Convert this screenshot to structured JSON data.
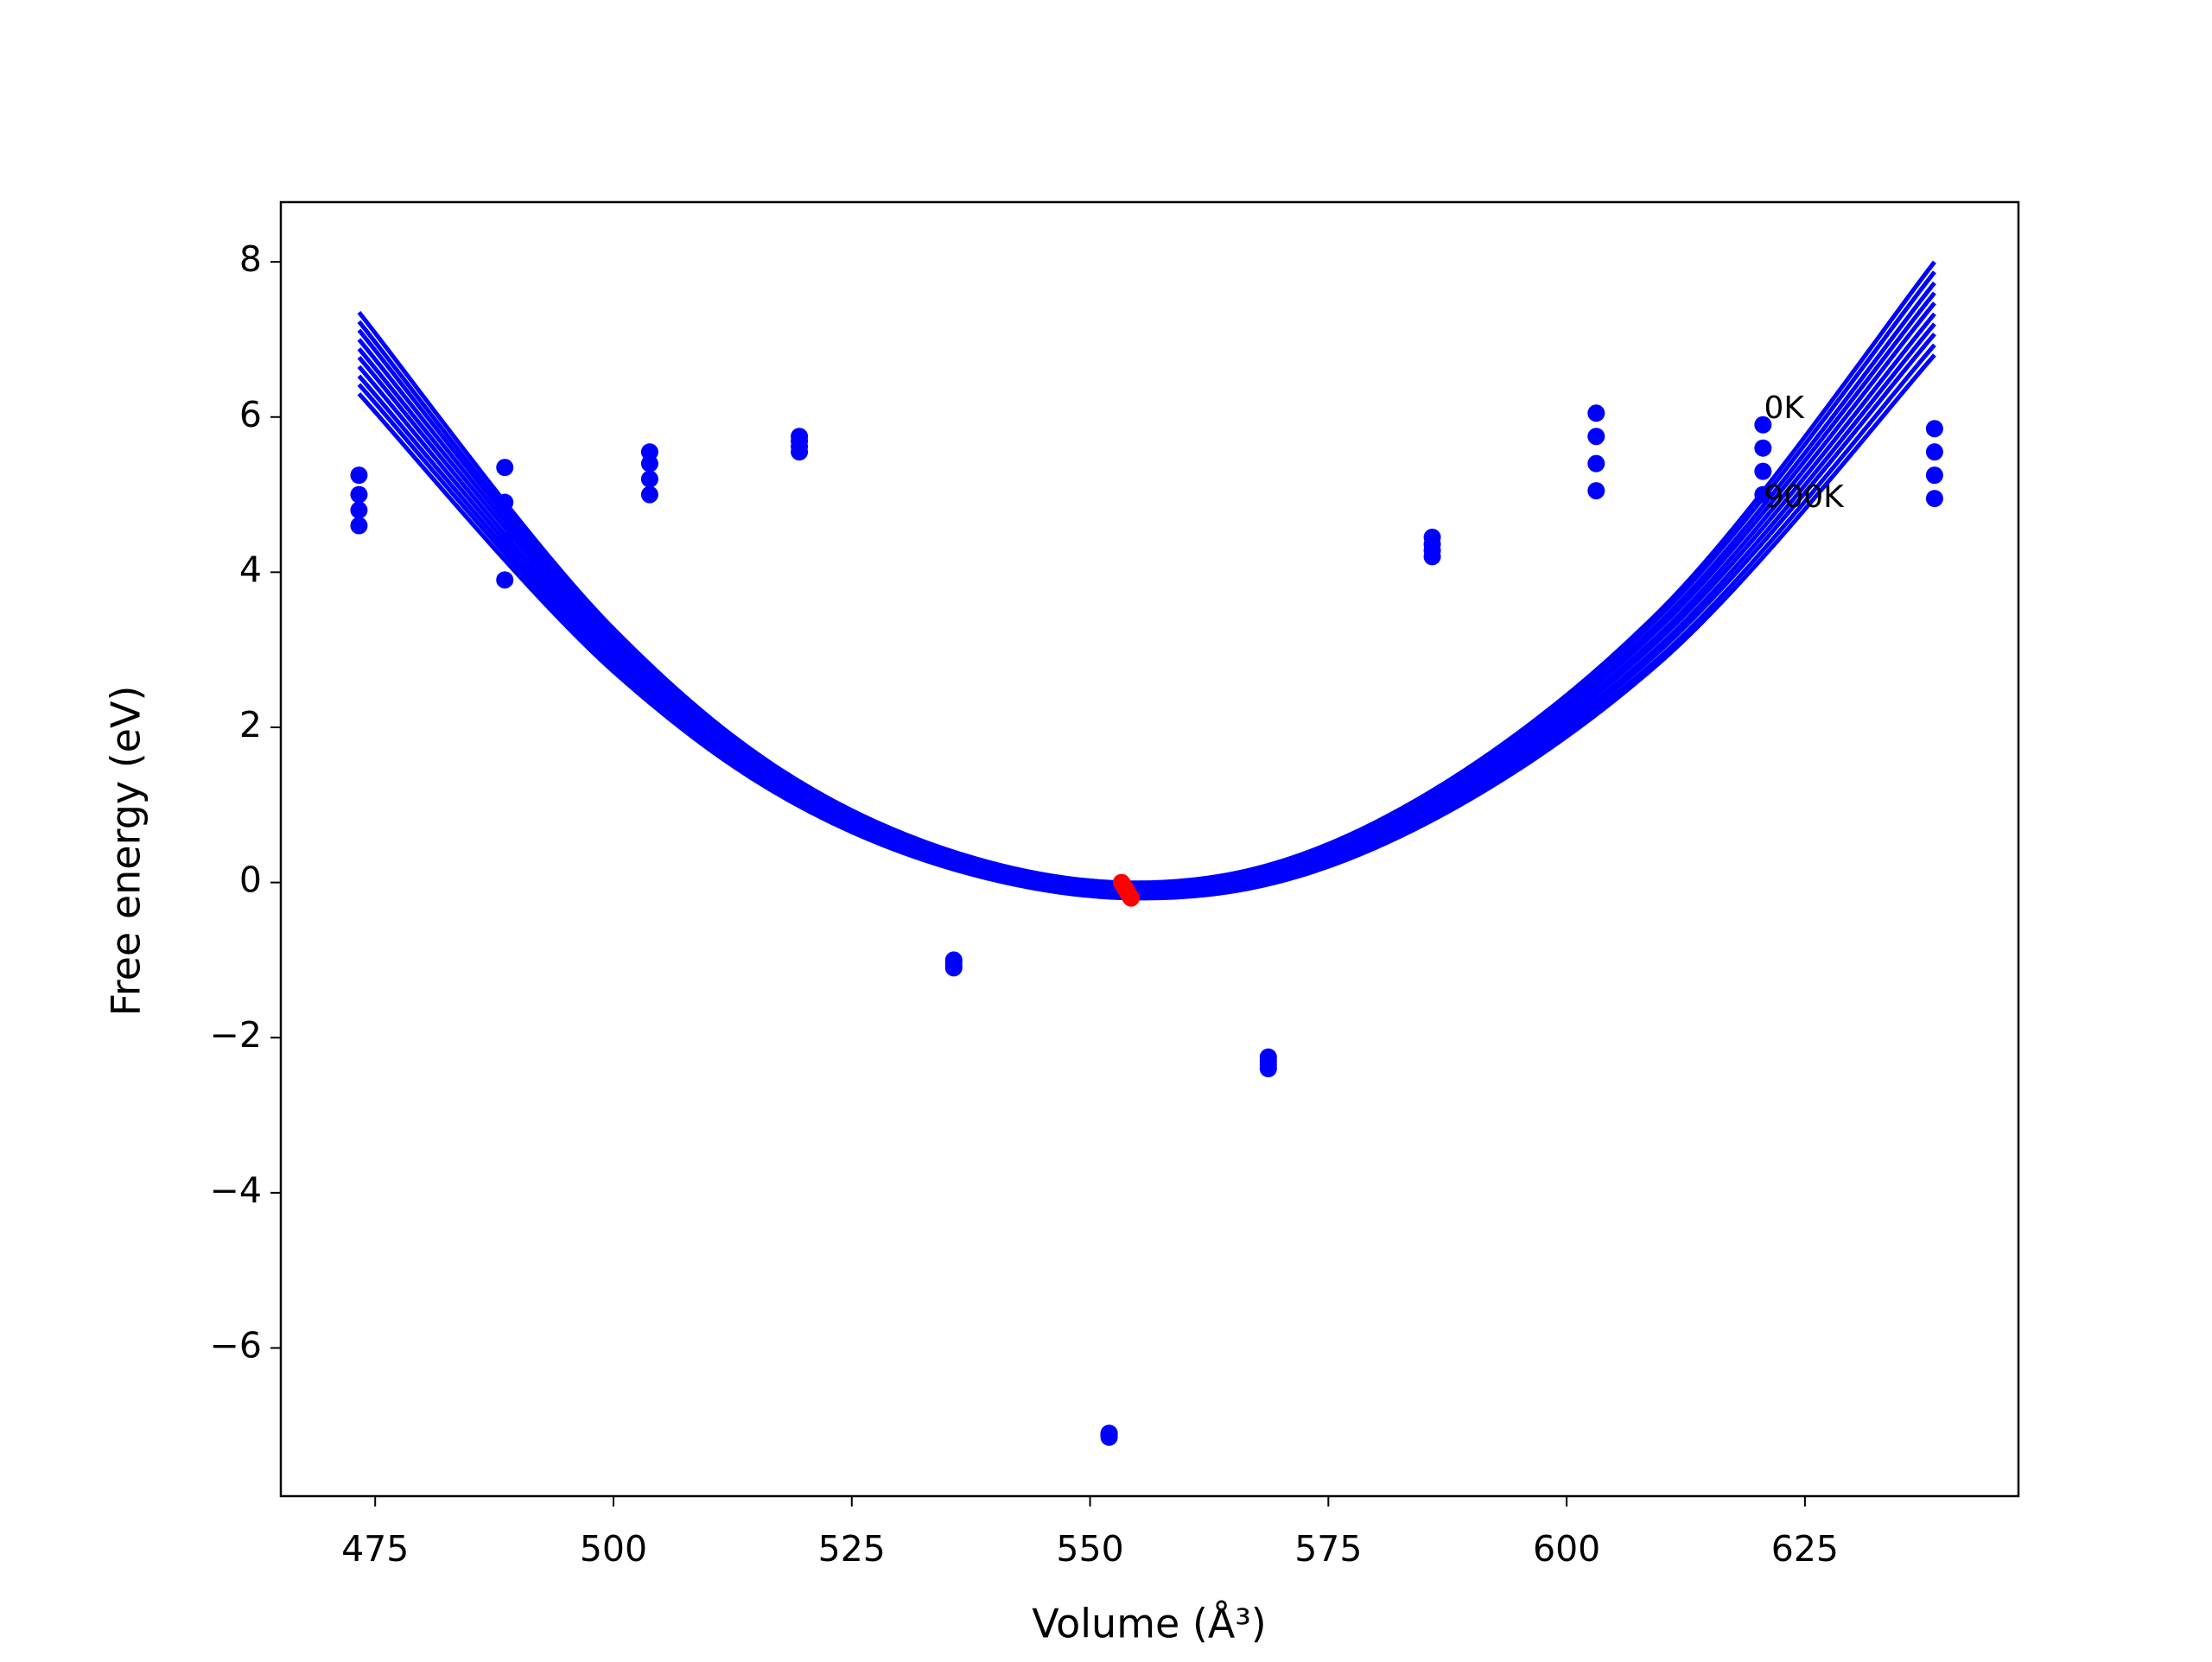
{
  "chart_data": {
    "type": "line",
    "xlabel": "Volume (Å³)",
    "ylabel": "Free energy (eV)",
    "xlim": [
      465.1,
      647.4
    ],
    "ylim": [
      -7.91,
      8.77
    ],
    "xticks": [
      475,
      500,
      525,
      550,
      575,
      600,
      625
    ],
    "yticks": [
      {
        "value": -6,
        "label": "−6"
      },
      {
        "value": -4,
        "label": "−4"
      },
      {
        "value": -2,
        "label": "−2"
      },
      0,
      2,
      4,
      6,
      8
    ],
    "x": [
      473.3,
      500,
      525,
      553.5,
      580,
      610,
      638.6
    ],
    "series": [
      {
        "color": "#0000ff",
        "values": [
          7.35,
          3.27,
          0.93,
          0,
          0.78,
          3.53,
          8.0
        ]
      },
      {
        "color": "#0000ff",
        "values": [
          7.23,
          3.21,
          0.9,
          -0.02,
          0.74,
          3.46,
          7.87
        ]
      },
      {
        "color": "#0000ff",
        "values": [
          7.12,
          3.15,
          0.87,
          -0.04,
          0.71,
          3.38,
          7.73
        ]
      },
      {
        "color": "#0000ff",
        "values": [
          7.0,
          3.09,
          0.84,
          -0.07,
          0.67,
          3.31,
          7.6
        ]
      },
      {
        "color": "#0000ff",
        "values": [
          6.88,
          3.03,
          0.81,
          -0.09,
          0.63,
          3.23,
          7.47
        ]
      },
      {
        "color": "#0000ff",
        "values": [
          6.77,
          2.96,
          0.77,
          -0.11,
          0.6,
          3.16,
          7.33
        ]
      },
      {
        "color": "#0000ff",
        "values": [
          6.65,
          2.9,
          0.74,
          -0.13,
          0.56,
          3.08,
          7.2
        ]
      },
      {
        "color": "#0000ff",
        "values": [
          6.53,
          2.84,
          0.71,
          -0.16,
          0.52,
          3.01,
          7.07
        ]
      },
      {
        "color": "#0000ff",
        "values": [
          6.42,
          2.78,
          0.68,
          -0.18,
          0.49,
          2.93,
          6.93
        ]
      },
      {
        "color": "#0000ff",
        "values": [
          6.3,
          2.72,
          0.65,
          -0.2,
          0.45,
          2.86,
          6.8
        ]
      },
      {
        "type": "scatter",
        "color": "#0000ff",
        "x": [
          473.3,
          473.3,
          473.3,
          473.3,
          488.6,
          488.6,
          488.6,
          488.6,
          503.8,
          503.8,
          503.8,
          503.8,
          519.5,
          519.5,
          519.5,
          519.5,
          535.7,
          535.7,
          535.7,
          535.7,
          552.0,
          552.0,
          552.0,
          552.0,
          568.7,
          568.7,
          568.7,
          568.7,
          585.9,
          585.9,
          585.9,
          585.9,
          603.1,
          603.1,
          603.1,
          603.1,
          620.6,
          620.6,
          620.6,
          620.6,
          638.6,
          638.6,
          638.6,
          638.6
        ],
        "values": [
          4.6,
          4.8,
          5.0,
          5.25,
          3.9,
          4.4,
          4.9,
          5.35,
          5.0,
          5.2,
          5.4,
          5.55,
          5.55,
          5.62,
          5.69,
          5.75,
          -1.1,
          -1.07,
          -1.03,
          -1.0,
          -7.15,
          -7.13,
          -7.11,
          -7.1,
          -2.4,
          -2.35,
          -2.3,
          -2.25,
          4.2,
          4.28,
          4.36,
          4.45,
          5.05,
          5.4,
          5.75,
          6.05,
          5.0,
          5.3,
          5.6,
          5.9,
          4.95,
          5.25,
          5.55,
          5.85
        ]
      },
      {
        "type": "scatter",
        "color": "#ff0000",
        "x": [
          553.3,
          553.41,
          553.52,
          553.63,
          553.74,
          553.86,
          553.97,
          554.08,
          554.19,
          554.3
        ],
        "values": [
          0,
          -0.02,
          -0.04,
          -0.07,
          -0.09,
          -0.11,
          -0.13,
          -0.16,
          -0.18,
          -0.2
        ]
      }
    ],
    "annotations": [
      {
        "text": "0K",
        "x": 620.7,
        "y": 6.1
      },
      {
        "text": "900K",
        "x": 620.7,
        "y": 4.95
      }
    ]
  }
}
